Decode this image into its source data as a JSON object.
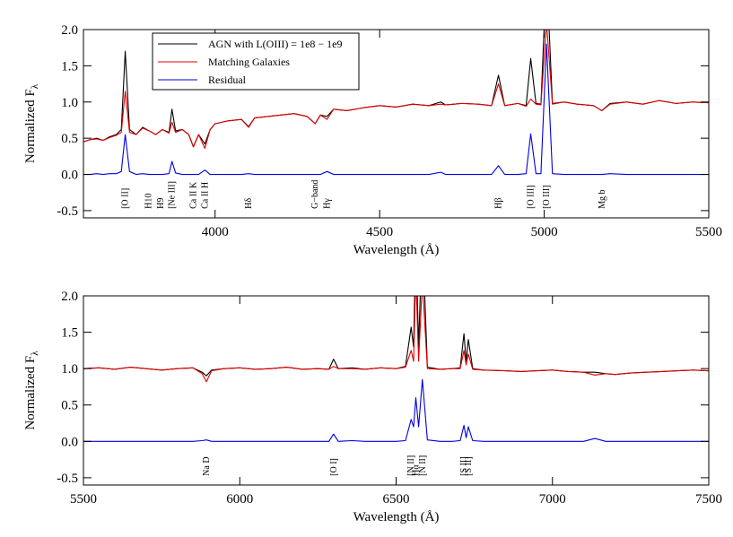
{
  "chart_data": [
    {
      "type": "line",
      "xlabel": "Wavelength (Å)",
      "ylabel": "Normalized F",
      "ylabel_subscript": "λ",
      "xlim": [
        3600,
        5500
      ],
      "xticks": [
        4000,
        4500,
        5000,
        5500
      ],
      "ylim": [
        -0.6,
        2.0
      ],
      "yticks": [
        {
          "value": 2,
          "label": "2.0"
        },
        1.5,
        {
          "value": 1,
          "label": "1.0"
        },
        0.5,
        {
          "value": 0,
          "label": "0.0"
        },
        -0.5
      ],
      "legend": "upper-left",
      "x": [
        3600,
        3620,
        3640,
        3660,
        3680,
        3700,
        3715,
        3727,
        3740,
        3760,
        3780,
        3800,
        3820,
        3840,
        3860,
        3869,
        3880,
        3900,
        3920,
        3934,
        3950,
        3969,
        3985,
        4000,
        4040,
        4080,
        4102,
        4120,
        4160,
        4200,
        4240,
        4280,
        4304,
        4320,
        4340,
        4360,
        4400,
        4450,
        4500,
        4550,
        4600,
        4650,
        4686,
        4700,
        4750,
        4800,
        4840,
        4861,
        4880,
        4920,
        4945,
        4959,
        4975,
        4990,
        5007,
        5025,
        5060,
        5100,
        5150,
        5175,
        5200,
        5250,
        5300,
        5350,
        5400,
        5450,
        5500
      ],
      "series": [
        {
          "name": "AGN with L(OIII) = 1e8 − 1e9",
          "color": "#000000",
          "values": [
            0.45,
            0.48,
            0.5,
            0.47,
            0.52,
            0.55,
            0.62,
            1.7,
            0.62,
            0.55,
            0.65,
            0.6,
            0.55,
            0.62,
            0.58,
            0.9,
            0.6,
            0.62,
            0.55,
            0.38,
            0.55,
            0.42,
            0.62,
            0.7,
            0.74,
            0.76,
            0.66,
            0.78,
            0.8,
            0.82,
            0.84,
            0.8,
            0.7,
            0.82,
            0.8,
            0.9,
            0.88,
            0.92,
            0.95,
            0.93,
            0.97,
            0.95,
            1.0,
            0.96,
            0.98,
            0.97,
            0.95,
            1.37,
            0.95,
            0.98,
            0.95,
            1.6,
            0.98,
            0.97,
            2.8,
            0.98,
            1.0,
            0.97,
            0.95,
            0.88,
            0.98,
            1.0,
            0.97,
            1.02,
            0.98,
            1.0,
            0.99
          ]
        },
        {
          "name": "Matching Galaxies",
          "color": "#e00000",
          "values": [
            0.45,
            0.48,
            0.49,
            0.47,
            0.51,
            0.54,
            0.58,
            1.15,
            0.58,
            0.55,
            0.64,
            0.6,
            0.55,
            0.62,
            0.57,
            0.72,
            0.58,
            0.62,
            0.55,
            0.38,
            0.55,
            0.36,
            0.62,
            0.7,
            0.74,
            0.76,
            0.65,
            0.78,
            0.8,
            0.82,
            0.84,
            0.8,
            0.7,
            0.82,
            0.76,
            0.9,
            0.88,
            0.92,
            0.95,
            0.93,
            0.97,
            0.95,
            0.97,
            0.96,
            0.98,
            0.97,
            0.95,
            1.25,
            0.95,
            0.98,
            0.94,
            1.04,
            0.97,
            0.96,
            2.1,
            0.97,
            1.0,
            0.97,
            0.95,
            0.88,
            0.97,
            1.0,
            0.97,
            1.02,
            0.98,
            1.0,
            0.99
          ]
        },
        {
          "name": "Residual",
          "color": "#0000e0",
          "values": [
            0,
            0,
            0.01,
            0,
            0.01,
            0.01,
            0.04,
            0.55,
            0.04,
            0,
            0.01,
            0,
            0,
            0,
            0.01,
            0.18,
            0.02,
            0,
            0,
            0,
            0,
            0.06,
            0,
            0,
            0,
            0,
            0.01,
            0,
            0,
            0,
            0,
            0,
            0,
            0,
            0.04,
            0,
            0,
            0,
            0,
            0,
            0,
            0,
            0.03,
            0,
            0,
            0,
            0,
            0.12,
            0,
            0,
            0.01,
            0.56,
            0.01,
            0.01,
            1.8,
            0.01,
            0,
            0,
            0,
            0,
            0.01,
            0,
            0,
            0,
            0,
            0,
            0
          ]
        }
      ],
      "annotations": [
        {
          "text": "[O II]",
          "x": 3727
        },
        {
          "text": "H10",
          "x": 3798
        },
        {
          "text": "H9",
          "x": 3835
        },
        {
          "text": "[Ne III]",
          "x": 3869
        },
        {
          "text": "Ca II K",
          "x": 3934
        },
        {
          "text": "Ca II H",
          "x": 3969
        },
        {
          "text": "Hδ",
          "x": 4102
        },
        {
          "text": "G−band",
          "x": 4304
        },
        {
          "text": "Hγ",
          "x": 4340
        },
        {
          "text": "Hβ",
          "x": 4861
        },
        {
          "text": "[O III]",
          "x": 4959
        },
        {
          "text": "[O III]",
          "x": 5007
        },
        {
          "text": "Mg b",
          "x": 5175
        }
      ]
    },
    {
      "type": "line",
      "xlabel": "Wavelength (Å)",
      "ylabel": "Normalized F",
      "ylabel_subscript": "λ",
      "xlim": [
        5500,
        7500
      ],
      "xticks": [
        5500,
        6000,
        6500,
        7000,
        7500
      ],
      "ylim": [
        -0.6,
        2.0
      ],
      "yticks": [
        {
          "value": 2,
          "label": "2.0"
        },
        1.5,
        {
          "value": 1,
          "label": "1.0"
        },
        0.5,
        {
          "value": 0,
          "label": "0.0"
        },
        -0.5
      ],
      "x": [
        5500,
        5550,
        5600,
        5650,
        5700,
        5750,
        5800,
        5850,
        5880,
        5893,
        5910,
        5950,
        6000,
        6050,
        6100,
        6150,
        6200,
        6250,
        6285,
        6300,
        6315,
        6360,
        6400,
        6450,
        6500,
        6530,
        6548,
        6556,
        6563,
        6572,
        6584,
        6600,
        6640,
        6680,
        6705,
        6717,
        6724,
        6731,
        6745,
        6780,
        6850,
        6900,
        6950,
        7000,
        7050,
        7100,
        7136,
        7170,
        7200,
        7250,
        7300,
        7350,
        7400,
        7450,
        7500
      ],
      "series": [
        {
          "color": "#000000",
          "values": [
            1.0,
            1.01,
            0.99,
            1.02,
            1.0,
            0.98,
            1.0,
            1.01,
            0.95,
            0.9,
            0.98,
            1.0,
            1.01,
            0.99,
            1.0,
            1.02,
            0.99,
            1.0,
            0.99,
            1.13,
            1.0,
            1.01,
            0.99,
            1.01,
            1.0,
            1.03,
            1.57,
            1.3,
            2.8,
            1.3,
            2.9,
            1.02,
            0.99,
            1.0,
            1.01,
            1.48,
            1.1,
            1.4,
            1.0,
            0.98,
            0.97,
            0.96,
            0.97,
            0.98,
            0.96,
            0.95,
            0.95,
            0.93,
            0.92,
            0.94,
            0.95,
            0.96,
            0.97,
            0.98,
            0.97
          ]
        },
        {
          "color": "#e00000",
          "values": [
            1.0,
            1.01,
            0.99,
            1.02,
            1.0,
            0.98,
            1.0,
            1.01,
            0.93,
            0.82,
            0.97,
            1.0,
            1.01,
            0.99,
            1.0,
            1.02,
            0.99,
            1.0,
            0.99,
            1.03,
            1.0,
            1.0,
            0.99,
            1.01,
            1.0,
            1.02,
            1.25,
            1.1,
            2.3,
            1.1,
            2.2,
            1.0,
            0.99,
            1.0,
            1.0,
            1.25,
            1.05,
            1.2,
            0.99,
            0.98,
            0.97,
            0.96,
            0.97,
            0.98,
            0.96,
            0.95,
            0.91,
            0.93,
            0.92,
            0.94,
            0.95,
            0.96,
            0.97,
            0.98,
            0.97
          ]
        },
        {
          "color": "#0000e0",
          "values": [
            0,
            0,
            0,
            0,
            0,
            0,
            0,
            0,
            0.01,
            0.02,
            0,
            0,
            0,
            0,
            0,
            0,
            0,
            0,
            0,
            0.1,
            0,
            0.01,
            0,
            0,
            0,
            0.01,
            0.3,
            0.2,
            0.6,
            0.2,
            0.85,
            0.02,
            0,
            0,
            0.01,
            0.22,
            0.05,
            0.2,
            0.01,
            0,
            0,
            0,
            0,
            0,
            0,
            0,
            0.04,
            0,
            0,
            0,
            0,
            0,
            0,
            0,
            0
          ]
        }
      ],
      "annotations": [
        {
          "text": "Na D",
          "x": 5893
        },
        {
          "text": "[O I]",
          "x": 6300
        },
        {
          "text": "[N II]",
          "x": 6548
        },
        {
          "text": "Hα",
          "x": 6563
        },
        {
          "text": "[N II]",
          "x": 6584
        },
        {
          "text": "[S II]",
          "x": 6717
        },
        {
          "text": "[S II]",
          "x": 6731
        }
      ]
    }
  ]
}
